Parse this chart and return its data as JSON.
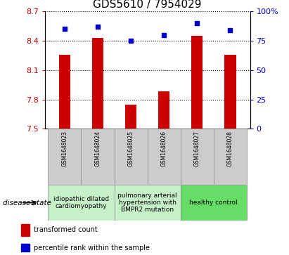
{
  "title": "GDS5610 / 7954029",
  "samples": [
    "GSM1648023",
    "GSM1648024",
    "GSM1648025",
    "GSM1648026",
    "GSM1648027",
    "GSM1648028"
  ],
  "transformed_counts": [
    8.26,
    8.43,
    7.75,
    7.88,
    8.45,
    8.26
  ],
  "percentile_ranks": [
    85,
    87,
    75,
    80,
    90,
    84
  ],
  "y_left_min": 7.5,
  "y_left_max": 8.7,
  "y_left_ticks": [
    7.5,
    7.8,
    8.1,
    8.4,
    8.7
  ],
  "y_right_min": 0,
  "y_right_max": 100,
  "y_right_ticks": [
    0,
    25,
    50,
    75,
    100
  ],
  "y_right_labels": [
    "0",
    "25",
    "50",
    "75",
    "100%"
  ],
  "bar_color": "#cc0000",
  "point_color": "#0000cc",
  "left_tick_color": "#cc0000",
  "right_tick_color": "#0000cc",
  "group_configs": [
    {
      "xlims": [
        -0.5,
        1.5
      ],
      "color": "#c8f0c8",
      "label": "idiopathic dilated\ncardiomyopathy"
    },
    {
      "xlims": [
        1.5,
        3.5
      ],
      "color": "#c8f0c8",
      "label": "pulmonary arterial\nhypertension with\nBMPR2 mutation"
    },
    {
      "xlims": [
        3.5,
        5.5
      ],
      "color": "#66dd66",
      "label": "healthy control"
    }
  ],
  "disease_state_label": "disease state",
  "legend_bar_label": "transformed count",
  "legend_point_label": "percentile rank within the sample",
  "title_fontsize": 11,
  "tick_fontsize": 8,
  "sample_fontsize": 5.5,
  "disease_fontsize": 6.5,
  "legend_fontsize": 7,
  "sample_box_color": "#cccccc",
  "sample_box_edge": "#888888",
  "bar_width": 0.35
}
